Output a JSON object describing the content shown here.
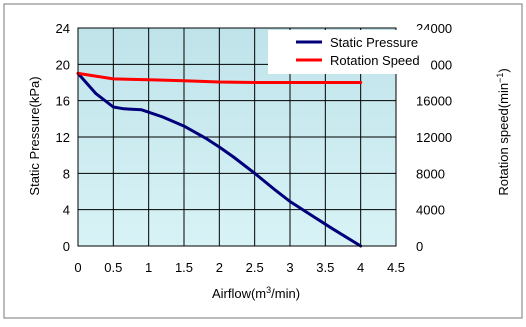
{
  "chart_data": {
    "type": "line",
    "x": [
      0,
      0.25,
      0.5,
      0.65,
      0.9,
      1.2,
      1.5,
      1.8,
      2.0,
      2.2,
      2.5,
      2.8,
      3.0,
      3.3,
      3.6,
      4.0
    ],
    "series": [
      {
        "name": "Static Pressure",
        "axis": "left",
        "color": "#00007a",
        "values": [
          19.0,
          16.8,
          15.3,
          15.1,
          15.0,
          14.2,
          13.2,
          11.9,
          10.9,
          9.8,
          8.0,
          6.1,
          4.9,
          3.4,
          1.9,
          0.0
        ]
      },
      {
        "name": "Rotation Speed",
        "axis": "right",
        "color": "#ff0000",
        "x": [
          0,
          0.5,
          1.0,
          1.5,
          2.0,
          2.5,
          3.0,
          3.5,
          4.0
        ],
        "values": [
          19000,
          18400,
          18300,
          18200,
          18050,
          18000,
          18000,
          18000,
          18000
        ]
      }
    ],
    "xlabel_main": "Airflow(m",
    "xlabel_sup": "3",
    "xlabel_end": "/min)",
    "ylabel_left": "Static Pressure(kPa)",
    "ylabel_right_main": "Rotation speed(min",
    "ylabel_right_sup": "−1",
    "ylabel_right_end": ")",
    "xlim": [
      0,
      4.5
    ],
    "ylim_left": [
      0,
      24
    ],
    "ylim_right": [
      0,
      24000
    ],
    "x_ticks": [
      "0",
      "0.5",
      "1",
      "1.5",
      "2",
      "2.5",
      "3",
      "3.5",
      "4",
      "4.5"
    ],
    "y_left_ticks": [
      "0",
      "4",
      "8",
      "12",
      "16",
      "20",
      "24"
    ],
    "y_right_ticks": [
      "0",
      "4000",
      "8000",
      "12000",
      "16000",
      "20000",
      "24000"
    ],
    "legend_position": "top-right",
    "grid": true,
    "plot_background": "#bfe3ea",
    "plot_background_bottom": "#d8f3f6",
    "grid_color": "#000000"
  }
}
